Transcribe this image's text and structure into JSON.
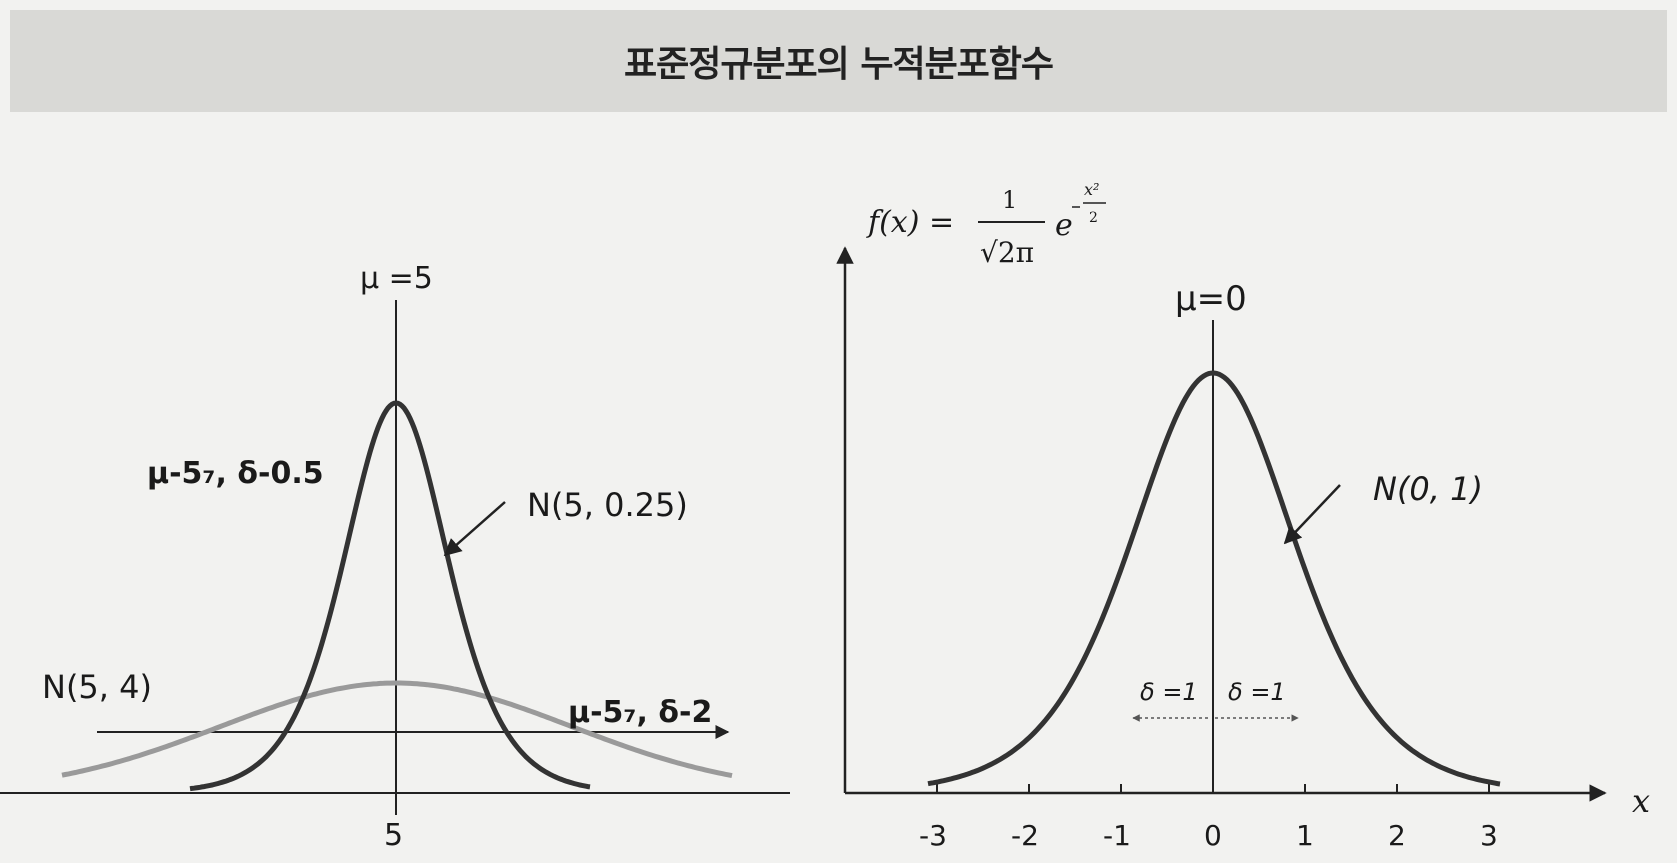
{
  "banner": {
    "title": "표준정규분포의 누적분포함수"
  },
  "left_panel": {
    "mu_label": "μ =5",
    "narrow_params": "μ-5₇, δ-0.5",
    "narrow_name": "N(5, 0.25)",
    "wide_name": "N(5, 4)",
    "wide_params": "μ-5₇, δ-2",
    "x_tick": "5"
  },
  "right_panel": {
    "formula": {
      "lhs": "f(x) =",
      "numerator": "1",
      "denominator": "√2π",
      "base": "e",
      "exp_num": "x²",
      "exp_den": "2"
    },
    "mu_label": "μ=0",
    "curve_name": "N(0, 1)",
    "delta_left": "δ =1",
    "delta_right": "δ =1",
    "x_axis_label": "x",
    "x_ticks": [
      "-3",
      "-2",
      "-1",
      "0",
      "1",
      "2",
      "3"
    ]
  },
  "colors": {
    "narrow_curve": "#333333",
    "wide_curve": "#9a9a9a",
    "axis": "#222222",
    "banner_bg": "#d9d9d6",
    "page_bg": "#f2f2f0"
  }
}
